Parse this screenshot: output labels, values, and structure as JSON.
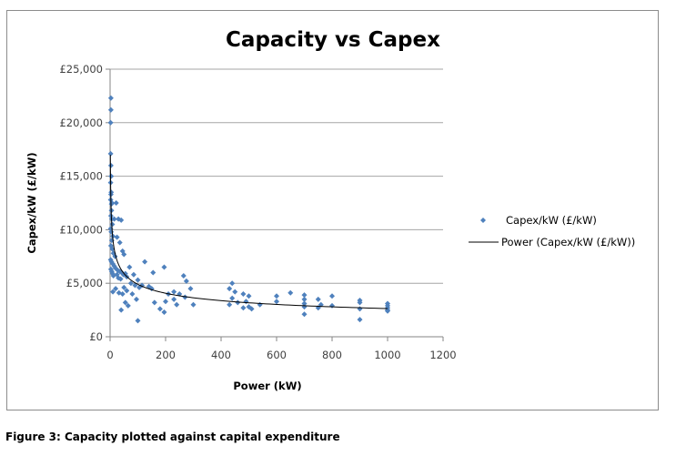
{
  "chart_data": {
    "type": "scatter",
    "title": "Capacity vs Capex",
    "xlabel": "Power (kW)",
    "ylabel": "Capex/kW (£/kW)",
    "xlim": [
      0,
      1200
    ],
    "ylim": [
      0,
      25000
    ],
    "x_ticks": [
      0,
      200,
      400,
      600,
      800,
      1000,
      1200
    ],
    "y_ticks": [
      0,
      5000,
      10000,
      15000,
      20000,
      25000
    ],
    "x_tick_labels": [
      "0",
      "200",
      "400",
      "600",
      "800",
      "1000",
      "1200"
    ],
    "y_tick_labels": [
      "£0",
      "£5,000",
      "£10,000",
      "£15,000",
      "£20,000",
      "£25,000"
    ],
    "grid": "horizontal",
    "legend_position": "right",
    "series": [
      {
        "name": "Capex/kW (£/kW)",
        "kind": "scatter",
        "color": "#4f81bd",
        "points": [
          [
            3,
            22300
          ],
          [
            3,
            21200
          ],
          [
            2,
            20000
          ],
          [
            2,
            17100
          ],
          [
            3,
            16000
          ],
          [
            4,
            15000
          ],
          [
            2,
            14400
          ],
          [
            4,
            13500
          ],
          [
            3,
            13300
          ],
          [
            2,
            12800
          ],
          [
            5,
            12400
          ],
          [
            7,
            12500
          ],
          [
            5,
            11800
          ],
          [
            3,
            11300
          ],
          [
            6,
            11000
          ],
          [
            8,
            10500
          ],
          [
            2,
            10100
          ],
          [
            4,
            9800
          ],
          [
            10,
            9400
          ],
          [
            15,
            11000
          ],
          [
            22,
            12500
          ],
          [
            30,
            11000
          ],
          [
            40,
            10900
          ],
          [
            25,
            9300
          ],
          [
            35,
            8800
          ],
          [
            6,
            9000
          ],
          [
            3,
            8500
          ],
          [
            8,
            8200
          ],
          [
            12,
            7800
          ],
          [
            18,
            7500
          ],
          [
            45,
            8000
          ],
          [
            50,
            7700
          ],
          [
            2,
            7200
          ],
          [
            5,
            7000
          ],
          [
            10,
            6800
          ],
          [
            15,
            6600
          ],
          [
            20,
            6400
          ],
          [
            28,
            6200
          ],
          [
            35,
            6100
          ],
          [
            42,
            6000
          ],
          [
            48,
            5800
          ],
          [
            55,
            5900
          ],
          [
            3,
            6300
          ],
          [
            6,
            6100
          ],
          [
            9,
            5900
          ],
          [
            12,
            5700
          ],
          [
            25,
            5800
          ],
          [
            30,
            5500
          ],
          [
            38,
            5400
          ],
          [
            60,
            5600
          ],
          [
            70,
            6500
          ],
          [
            85,
            5800
          ],
          [
            100,
            5300
          ],
          [
            75,
            5000
          ],
          [
            90,
            4800
          ],
          [
            105,
            4600
          ],
          [
            115,
            4800
          ],
          [
            140,
            4700
          ],
          [
            10,
            4200
          ],
          [
            20,
            4500
          ],
          [
            32,
            4100
          ],
          [
            45,
            4000
          ],
          [
            50,
            4600
          ],
          [
            60,
            4300
          ],
          [
            80,
            4000
          ],
          [
            95,
            3500
          ],
          [
            55,
            3200
          ],
          [
            65,
            2900
          ],
          [
            40,
            2500
          ],
          [
            100,
            1500
          ],
          [
            125,
            7000
          ],
          [
            155,
            6000
          ],
          [
            195,
            6500
          ],
          [
            150,
            4500
          ],
          [
            160,
            3200
          ],
          [
            180,
            2600
          ],
          [
            195,
            2300
          ],
          [
            210,
            4000
          ],
          [
            230,
            4200
          ],
          [
            250,
            4000
          ],
          [
            265,
            5700
          ],
          [
            275,
            5200
          ],
          [
            290,
            4500
          ],
          [
            270,
            3700
          ],
          [
            300,
            3000
          ],
          [
            200,
            3300
          ],
          [
            230,
            3500
          ],
          [
            240,
            3000
          ],
          [
            430,
            4500
          ],
          [
            440,
            5000
          ],
          [
            450,
            4200
          ],
          [
            440,
            3600
          ],
          [
            460,
            3200
          ],
          [
            430,
            3000
          ],
          [
            480,
            4000
          ],
          [
            500,
            3800
          ],
          [
            490,
            3300
          ],
          [
            500,
            2800
          ],
          [
            510,
            2600
          ],
          [
            480,
            2700
          ],
          [
            540,
            3000
          ],
          [
            600,
            3800
          ],
          [
            600,
            3300
          ],
          [
            650,
            4100
          ],
          [
            700,
            3900
          ],
          [
            700,
            3500
          ],
          [
            700,
            3100
          ],
          [
            700,
            2800
          ],
          [
            700,
            2100
          ],
          [
            750,
            3500
          ],
          [
            760,
            3000
          ],
          [
            750,
            2700
          ],
          [
            800,
            3800
          ],
          [
            800,
            2900
          ],
          [
            900,
            3400
          ],
          [
            900,
            3200
          ],
          [
            900,
            2600
          ],
          [
            900,
            1600
          ],
          [
            1000,
            3100
          ],
          [
            1000,
            2900
          ],
          [
            1000,
            2700
          ],
          [
            1000,
            2500
          ],
          [
            1000,
            2400
          ]
        ]
      },
      {
        "name": "Power (Capex/kW (£/kW))",
        "kind": "power-trendline",
        "color": "#000000",
        "equation": "y = 17000 * x^-0.27",
        "coefficient": 17000,
        "exponent": -0.27,
        "x_range": [
          1,
          1000
        ]
      }
    ],
    "caption": "Figure 3: Capacity plotted against capital expenditure"
  }
}
